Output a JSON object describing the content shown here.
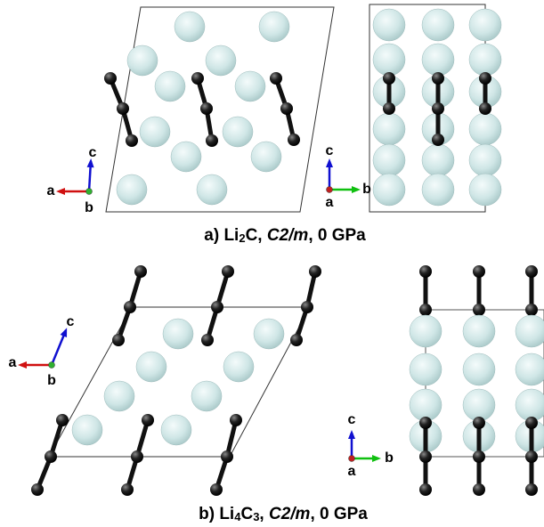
{
  "panels": [
    {
      "caption": [
        "a)  Li",
        "2",
        "C, ",
        "C2/m",
        ", 0 GPa"
      ],
      "structure_axes": {
        "x": "a",
        "y": "c",
        "out": "b"
      },
      "projection_axes": {
        "x": "b",
        "y": "c",
        "out": "a"
      }
    },
    {
      "caption": [
        "b)  Li",
        "4",
        "C",
        "3",
        ", ",
        "C2/m",
        ", 0 GPa"
      ],
      "structure_axes": {
        "x": "a",
        "y": "c",
        "out": "b"
      },
      "projection_axes": {
        "x": "b",
        "y": "c",
        "out": "a"
      }
    }
  ]
}
